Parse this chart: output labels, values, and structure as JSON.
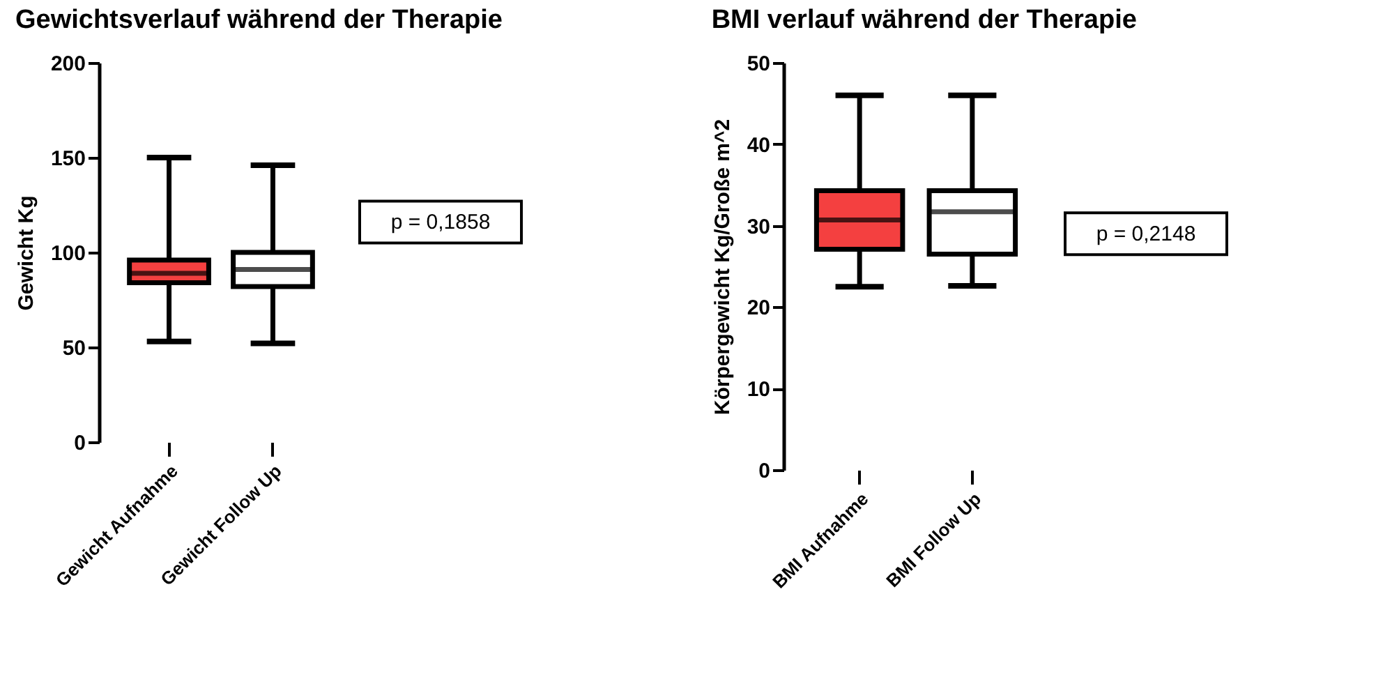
{
  "chart_data": [
    {
      "type": "box",
      "title": "Gewichtsverlauf während der Therapie",
      "ylabel": "Gewicht Kg",
      "categories": [
        "Gewicht Aufnahme",
        "Gewicht Follow Up"
      ],
      "colors": [
        "#f44040",
        "#ffffff"
      ],
      "boxes": [
        {
          "low": 53,
          "q1": 84,
          "median": 89,
          "q3": 96,
          "high": 150
        },
        {
          "low": 52,
          "q1": 82,
          "median": 91,
          "q3": 100,
          "high": 146
        }
      ],
      "ylim": [
        0,
        200
      ],
      "yticks": [
        0,
        50,
        100,
        150,
        200
      ],
      "grid": false,
      "annotations": [
        "p = 0,1858"
      ]
    },
    {
      "type": "box",
      "title": "BMI verlauf während der Therapie",
      "ylabel": "Körpergewicht Kg/Große m^2",
      "categories": [
        "BMI Aufnahme",
        "BMI Follow Up"
      ],
      "colors": [
        "#f44040",
        "#ffffff"
      ],
      "boxes": [
        {
          "low": 22.5,
          "q1": 27.1,
          "median": 30.7,
          "q3": 34.3,
          "high": 46
        },
        {
          "low": 22.6,
          "q1": 26.5,
          "median": 31.7,
          "q3": 34.3,
          "high": 46
        }
      ],
      "ylim": [
        0,
        50
      ],
      "yticks": [
        0,
        10,
        20,
        30,
        40,
        50
      ],
      "grid": false,
      "annotations": [
        "p = 0,2148"
      ]
    }
  ]
}
